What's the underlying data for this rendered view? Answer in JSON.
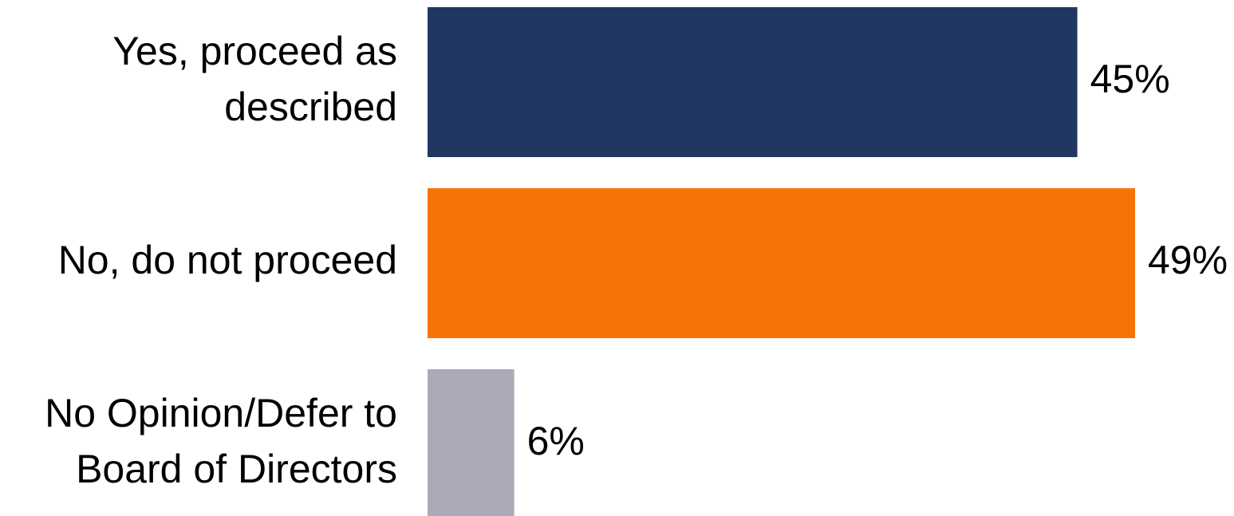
{
  "chart_data": {
    "type": "bar",
    "orientation": "horizontal",
    "categories": [
      "Yes, proceed as described",
      "No, do not proceed",
      "No Opinion/Defer to Board of Directors"
    ],
    "category_lines": [
      [
        "Yes, proceed as",
        "described"
      ],
      [
        "No, do not proceed"
      ],
      [
        "No Opinion/Defer to",
        "Board of Directors"
      ]
    ],
    "values": [
      45,
      49,
      6
    ],
    "value_labels": [
      "45%",
      "49%",
      "6%"
    ],
    "colors": [
      "#1F3761",
      "#F77306",
      "#AAABB7"
    ],
    "unit": "%",
    "title": "",
    "xlabel": "",
    "ylabel": "",
    "xlim": [
      0,
      49
    ],
    "grid": false,
    "legend": "none"
  }
}
